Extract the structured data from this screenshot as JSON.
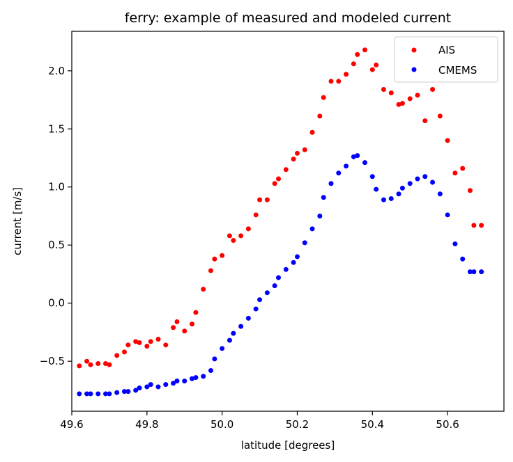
{
  "chart_data": {
    "type": "scatter",
    "title": "ferry: example of measured and modeled current",
    "xlabel": "latitude [degrees]",
    "ylabel": "current [m/s]",
    "xlim": [
      49.6,
      50.75
    ],
    "ylim": [
      -0.93,
      2.34
    ],
    "xticks": [
      49.6,
      49.8,
      50.0,
      50.2,
      50.4,
      50.6
    ],
    "xtick_labels": [
      "49.6",
      "49.8",
      "50.0",
      "50.2",
      "50.4",
      "50.6"
    ],
    "yticks": [
      -0.5,
      0.0,
      0.5,
      1.0,
      1.5,
      2.0
    ],
    "ytick_labels": [
      "−0.5",
      "0.0",
      "0.5",
      "1.0",
      "1.5",
      "2.0"
    ],
    "grid": false,
    "legend_position": "top-right",
    "series": [
      {
        "name": "AIS",
        "color": "#ff0000",
        "x": [
          49.62,
          49.64,
          49.65,
          49.67,
          49.69,
          49.7,
          49.72,
          49.74,
          49.75,
          49.77,
          49.78,
          49.8,
          49.81,
          49.83,
          49.85,
          49.87,
          49.88,
          49.9,
          49.92,
          49.93,
          49.95,
          49.97,
          49.98,
          50.0,
          50.02,
          50.03,
          50.05,
          50.07,
          50.09,
          50.1,
          50.12,
          50.14,
          50.15,
          50.17,
          50.19,
          50.2,
          50.22,
          50.24,
          50.26,
          50.27,
          50.29,
          50.31,
          50.33,
          50.35,
          50.36,
          50.38,
          50.4,
          50.41,
          50.43,
          50.45,
          50.47,
          50.48,
          50.5,
          50.52,
          50.54,
          50.56,
          50.58,
          50.6,
          50.62,
          50.64,
          50.66,
          50.67,
          50.69
        ],
        "y": [
          -0.54,
          -0.5,
          -0.53,
          -0.52,
          -0.52,
          -0.53,
          -0.45,
          -0.42,
          -0.36,
          -0.33,
          -0.34,
          -0.37,
          -0.33,
          -0.31,
          -0.36,
          -0.21,
          -0.16,
          -0.24,
          -0.18,
          -0.08,
          0.12,
          0.28,
          0.38,
          0.41,
          0.58,
          0.54,
          0.58,
          0.64,
          0.76,
          0.89,
          0.89,
          1.03,
          1.07,
          1.15,
          1.24,
          1.29,
          1.32,
          1.47,
          1.61,
          1.77,
          1.91,
          1.91,
          1.97,
          2.06,
          2.14,
          2.18,
          2.01,
          2.05,
          1.84,
          1.81,
          1.71,
          1.72,
          1.76,
          1.79,
          1.57,
          1.84,
          1.61,
          1.4,
          1.12,
          1.16,
          0.97,
          0.67,
          0.67
        ]
      },
      {
        "name": "CMEMS",
        "color": "#0000ff",
        "x": [
          49.62,
          49.64,
          49.65,
          49.67,
          49.69,
          49.7,
          49.72,
          49.74,
          49.75,
          49.77,
          49.78,
          49.8,
          49.81,
          49.83,
          49.85,
          49.87,
          49.88,
          49.9,
          49.92,
          49.93,
          49.95,
          49.97,
          49.98,
          50.0,
          50.02,
          50.03,
          50.05,
          50.07,
          50.09,
          50.1,
          50.12,
          50.14,
          50.15,
          50.17,
          50.19,
          50.2,
          50.22,
          50.24,
          50.26,
          50.27,
          50.29,
          50.31,
          50.33,
          50.35,
          50.36,
          50.38,
          50.4,
          50.41,
          50.43,
          50.45,
          50.47,
          50.48,
          50.5,
          50.52,
          50.54,
          50.56,
          50.58,
          50.6,
          50.62,
          50.64,
          50.66,
          50.67,
          50.69
        ],
        "y": [
          -0.78,
          -0.78,
          -0.78,
          -0.78,
          -0.78,
          -0.78,
          -0.77,
          -0.76,
          -0.76,
          -0.75,
          -0.73,
          -0.72,
          -0.7,
          -0.72,
          -0.7,
          -0.69,
          -0.67,
          -0.67,
          -0.65,
          -0.64,
          -0.63,
          -0.58,
          -0.48,
          -0.39,
          -0.32,
          -0.26,
          -0.2,
          -0.13,
          -0.05,
          0.03,
          0.09,
          0.15,
          0.22,
          0.29,
          0.35,
          0.4,
          0.52,
          0.64,
          0.75,
          0.91,
          1.03,
          1.12,
          1.18,
          1.26,
          1.27,
          1.21,
          1.09,
          0.98,
          0.89,
          0.9,
          0.94,
          0.99,
          1.03,
          1.07,
          1.09,
          1.04,
          0.94,
          0.76,
          0.51,
          0.38,
          0.27,
          0.27,
          0.27
        ]
      }
    ]
  }
}
